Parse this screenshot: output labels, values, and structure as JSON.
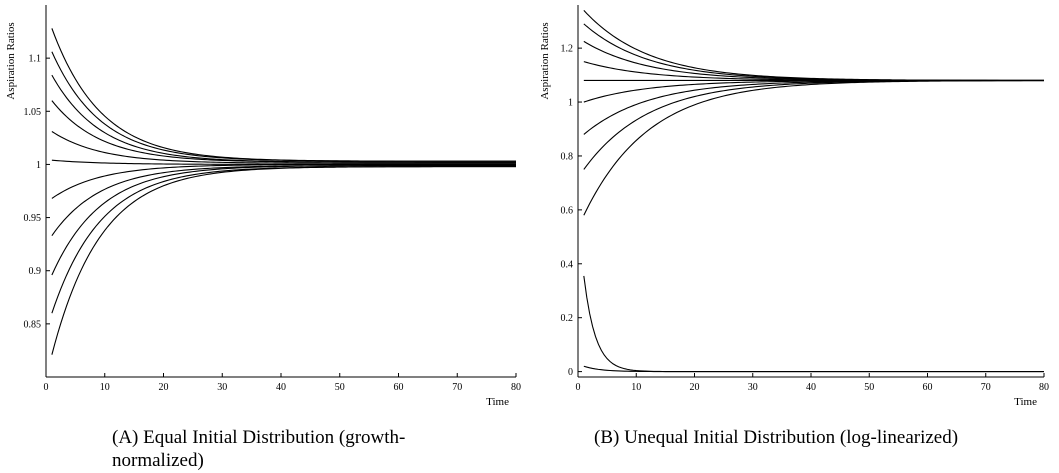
{
  "charts": [
    {
      "caption": "(A) Equal Initial Distribution (growth-normalized)",
      "chart_data": {
        "type": "line",
        "xlabel": "Time",
        "ylabel": "Aspiration Ratios",
        "xlim": [
          0,
          80
        ],
        "ylim": [
          0.8,
          1.15
        ],
        "xticks": [
          0,
          10,
          20,
          30,
          40,
          50,
          60,
          70,
          80
        ],
        "yticks": [
          0.85,
          0.9,
          0.95,
          1,
          1.05,
          1.1
        ],
        "ytick_labels": [
          "0.85",
          "0.9",
          "0.95",
          "1",
          "1.05",
          "1.1"
        ],
        "grid": false,
        "series": [
          {
            "y0": 1.128,
            "yinf": 1.003,
            "rate": 0.12
          },
          {
            "y0": 1.106,
            "yinf": 1.003,
            "rate": 0.12
          },
          {
            "y0": 1.084,
            "yinf": 1.002,
            "rate": 0.12
          },
          {
            "y0": 1.06,
            "yinf": 1.002,
            "rate": 0.12
          },
          {
            "y0": 1.031,
            "yinf": 1.001,
            "rate": 0.12
          },
          {
            "y0": 1.004,
            "yinf": 1.0,
            "rate": 0.12
          },
          {
            "y0": 0.968,
            "yinf": 1.0,
            "rate": 0.12
          },
          {
            "y0": 0.933,
            "yinf": 0.999,
            "rate": 0.12
          },
          {
            "y0": 0.896,
            "yinf": 0.999,
            "rate": 0.12
          },
          {
            "y0": 0.86,
            "yinf": 0.998,
            "rate": 0.12
          },
          {
            "y0": 0.821,
            "yinf": 0.998,
            "rate": 0.12
          }
        ]
      }
    },
    {
      "caption": "(B) Unequal Initial Distribution (log-linearized)",
      "chart_data": {
        "type": "line",
        "xlabel": "Time",
        "ylabel": "Aspiration Ratios",
        "xlim": [
          0,
          80
        ],
        "ylim": [
          -0.02,
          1.36
        ],
        "xticks": [
          0,
          10,
          20,
          30,
          40,
          50,
          60,
          70,
          80
        ],
        "yticks": [
          0,
          0.2,
          0.4,
          0.6,
          0.8,
          1,
          1.2
        ],
        "ytick_labels": [
          "0",
          "0.2",
          "0.4",
          "0.6",
          "0.8",
          "1",
          "1.2"
        ],
        "grid": false,
        "series": [
          {
            "y0": 1.34,
            "yinf": 1.08,
            "rate": 0.09
          },
          {
            "y0": 1.29,
            "yinf": 1.08,
            "rate": 0.09
          },
          {
            "y0": 1.225,
            "yinf": 1.08,
            "rate": 0.09
          },
          {
            "y0": 1.15,
            "yinf": 1.08,
            "rate": 0.09
          },
          {
            "y0": 1.08,
            "yinf": 1.08,
            "rate": 0.09
          },
          {
            "y0": 1.0,
            "yinf": 1.08,
            "rate": 0.09
          },
          {
            "y0": 0.88,
            "yinf": 1.08,
            "rate": 0.09
          },
          {
            "y0": 0.75,
            "yinf": 1.08,
            "rate": 0.09
          },
          {
            "y0": 0.58,
            "yinf": 1.08,
            "rate": 0.09
          },
          {
            "y0": 0.355,
            "yinf": 0.0,
            "rate": 0.5
          },
          {
            "y0": 0.02,
            "yinf": 0.0,
            "rate": 0.35
          }
        ]
      }
    }
  ]
}
